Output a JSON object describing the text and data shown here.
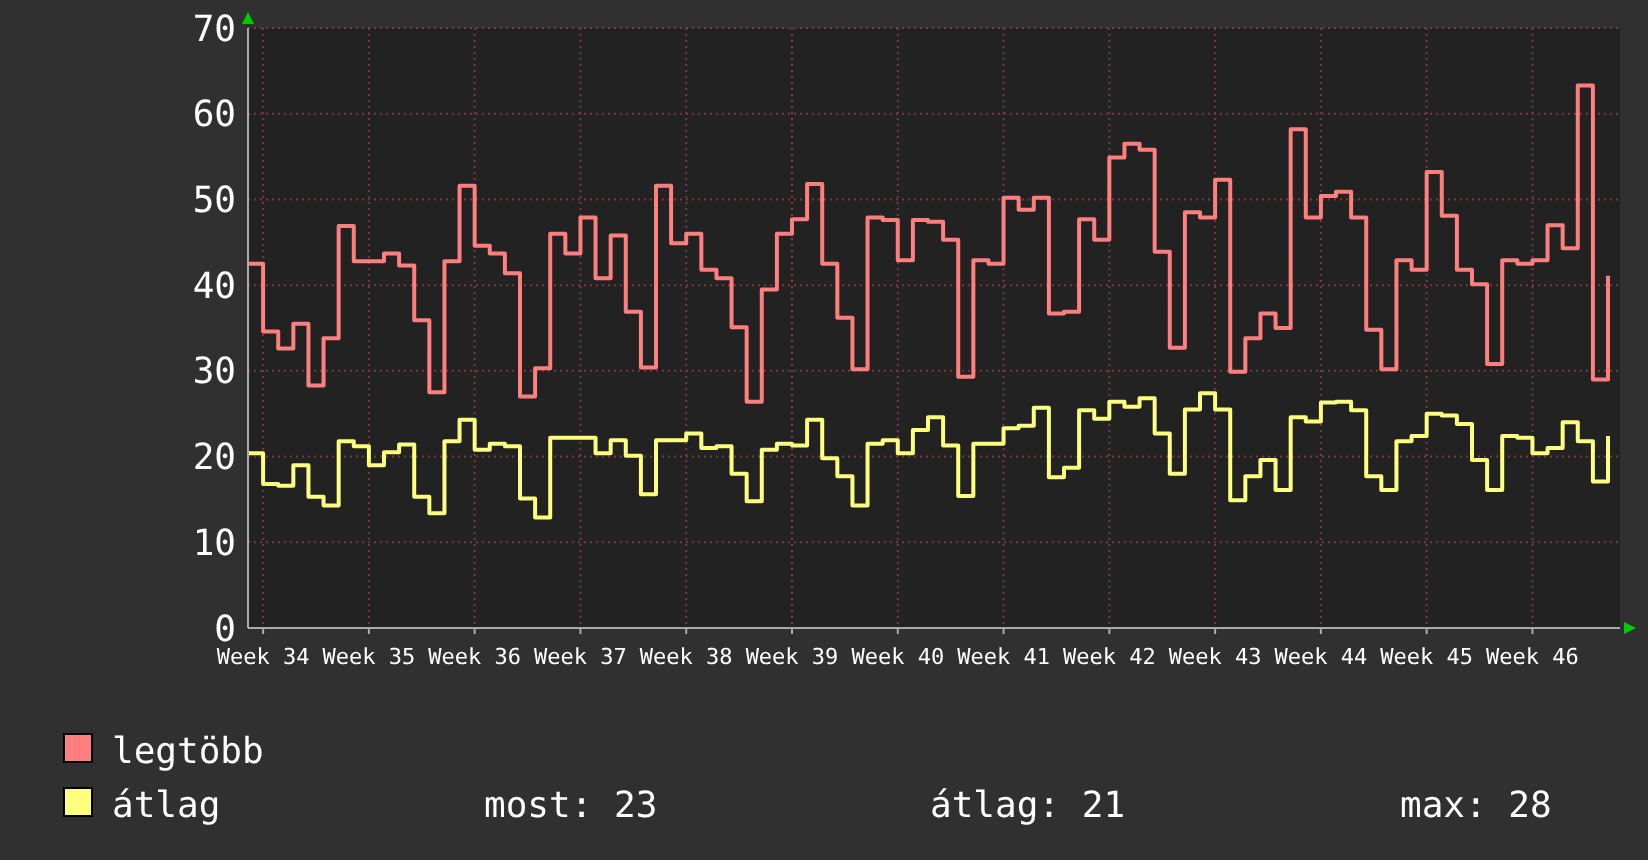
{
  "chart_data": {
    "type": "step",
    "categories": [
      null,
      "Week 34",
      null,
      null,
      null,
      null,
      null,
      null,
      "Week 35",
      null,
      null,
      null,
      null,
      null,
      null,
      "Week 36",
      null,
      null,
      null,
      null,
      null,
      null,
      "Week 37",
      null,
      null,
      null,
      null,
      null,
      null,
      "Week 38",
      null,
      null,
      null,
      null,
      null,
      null,
      "Week 39",
      null,
      null,
      null,
      null,
      null,
      null,
      "Week 40",
      null,
      null,
      null,
      null,
      null,
      null,
      "Week 41",
      null,
      null,
      null,
      null,
      null,
      null,
      "Week 42",
      null,
      null,
      null,
      null,
      null,
      null,
      "Week 43",
      null,
      null,
      null,
      null,
      null,
      null,
      "Week 44",
      null,
      null,
      null,
      null,
      null,
      null,
      "Week 45",
      null,
      null,
      null,
      null,
      null,
      null,
      "Week 46",
      null,
      null,
      null,
      null,
      null
    ],
    "series": [
      {
        "name": "legtöbb",
        "color": "#ff7f7f",
        "values": [
          42.5,
          34.6,
          32.6,
          35.5,
          28.3,
          33.8,
          46.9,
          42.8,
          42.8,
          43.7,
          42.3,
          35.9,
          27.5,
          42.8,
          51.6,
          44.6,
          43.7,
          41.4,
          27.0,
          30.3,
          46.0,
          43.7,
          47.9,
          40.8,
          45.8,
          36.9,
          30.4,
          51.6,
          44.9,
          46.0,
          41.8,
          40.8,
          35.1,
          26.4,
          39.5,
          46.0,
          47.7,
          51.8,
          42.5,
          36.2,
          30.2,
          47.9,
          47.6,
          42.9,
          47.6,
          47.4,
          45.3,
          29.3,
          42.9,
          42.5,
          50.2,
          48.8,
          50.2,
          36.7,
          36.9,
          47.7,
          45.3,
          54.9,
          56.5,
          55.8,
          43.9,
          32.7,
          48.5,
          47.9,
          52.3,
          29.9,
          33.8,
          36.7,
          35.0,
          58.2,
          47.9,
          50.4,
          50.9,
          47.9,
          34.8,
          30.2,
          42.9,
          41.8,
          53.2,
          48.1,
          41.8,
          40.1,
          30.8,
          42.9,
          42.5,
          42.9,
          47.0,
          44.3,
          63.3,
          29.0,
          41.1
        ]
      },
      {
        "name": "átlag",
        "color": "#ffff7f",
        "values": [
          20.4,
          16.8,
          16.6,
          19.0,
          15.3,
          14.3,
          21.8,
          21.2,
          19.0,
          20.5,
          21.4,
          15.3,
          13.4,
          21.8,
          24.3,
          20.8,
          21.5,
          21.2,
          15.1,
          12.9,
          22.2,
          22.2,
          22.2,
          20.4,
          21.9,
          20.1,
          15.6,
          21.9,
          21.9,
          22.7,
          21.0,
          21.2,
          18.0,
          14.8,
          20.8,
          21.5,
          21.3,
          24.3,
          19.8,
          17.7,
          14.3,
          21.5,
          21.9,
          20.4,
          23.1,
          24.6,
          21.3,
          15.4,
          21.5,
          21.5,
          23.3,
          23.6,
          25.7,
          17.6,
          18.7,
          25.4,
          24.4,
          26.4,
          25.8,
          26.8,
          22.7,
          18.0,
          25.5,
          27.4,
          25.5,
          14.9,
          17.7,
          19.6,
          16.1,
          24.6,
          24.1,
          26.3,
          26.4,
          25.4,
          17.7,
          16.1,
          21.8,
          22.4,
          25.0,
          24.8,
          23.8,
          19.6,
          16.1,
          22.4,
          22.2,
          20.4,
          21.0,
          24.0,
          21.8,
          17.1,
          22.4
        ]
      }
    ],
    "ylim": [
      0,
      70
    ],
    "yticks": [
      0,
      10,
      20,
      30,
      40,
      50,
      60,
      70
    ],
    "grid": true,
    "legend": "bottom",
    "annotations": [
      "most: 23",
      "átlag: 21",
      "max: 28"
    ]
  }
}
